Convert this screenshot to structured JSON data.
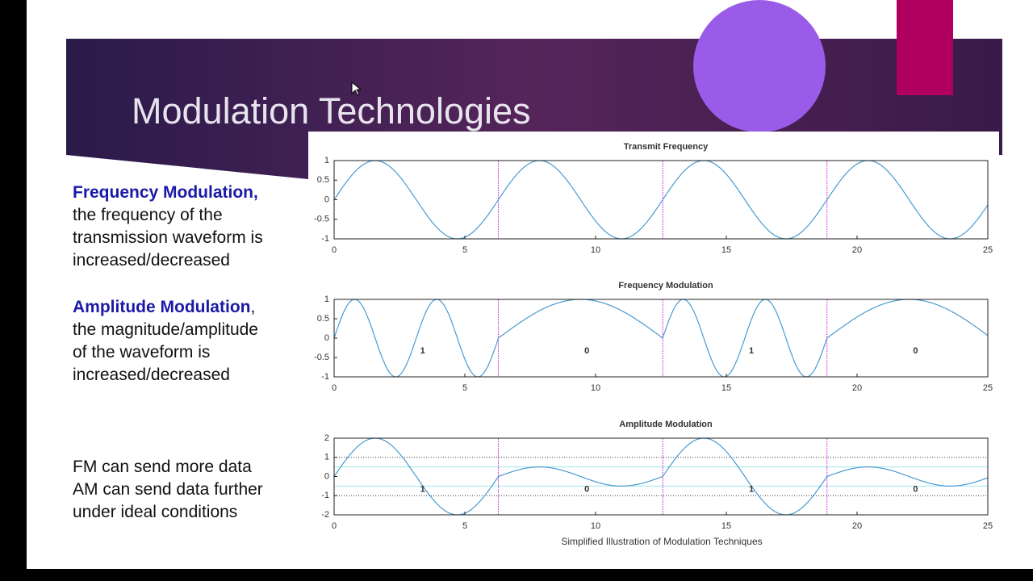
{
  "title": "Modulation Technologies",
  "paragraphs": [
    {
      "lead": "Frequency Modulation,",
      "lines": [
        "the frequency of the",
        "transmission waveform is",
        "increased/decreased"
      ]
    },
    {
      "lead": "Amplitude Modulation",
      "lead_tail": ",",
      "lines": [
        "the magnitude/amplitude",
        "of the waveform is",
        "increased/decreased"
      ]
    },
    {
      "lines": [
        "FM can send more data",
        "AM can send data further",
        "under ideal conditions"
      ]
    }
  ],
  "figure": {
    "caption": "Simplified Illustration of Modulation Techniques",
    "plots": [
      {
        "type": "carrier",
        "title": "Transmit Frequency",
        "xlim": [
          0,
          25
        ],
        "ylim": [
          -1,
          1
        ],
        "xticks": [
          0,
          5,
          10,
          15,
          20,
          25
        ],
        "yticks": [
          1,
          0.5,
          0,
          -0.5,
          -1
        ],
        "dividers": [
          6.28,
          12.57,
          18.85
        ]
      },
      {
        "type": "fm",
        "title": "Frequency Modulation",
        "xlim": [
          0,
          25
        ],
        "ylim": [
          -1,
          1
        ],
        "xticks": [
          0,
          5,
          10,
          15,
          20,
          25
        ],
        "yticks": [
          1,
          0.5,
          0,
          -0.5,
          -1
        ],
        "dividers": [
          6.28,
          12.57,
          18.85
        ],
        "bits": [
          "1",
          "0",
          "1",
          "0"
        ]
      },
      {
        "type": "am",
        "title": "Amplitude Modulation",
        "xlim": [
          0,
          25
        ],
        "ylim": [
          -2,
          2
        ],
        "xticks": [
          0,
          5,
          10,
          15,
          20,
          25
        ],
        "yticks": [
          2,
          1,
          0,
          -1,
          -2
        ],
        "dividers": [
          6.28,
          12.57,
          18.85
        ],
        "ref_lines": [
          -1,
          1
        ],
        "ref_bands": [
          -0.5,
          0.5
        ],
        "bits": [
          "1",
          "0",
          "1",
          "0"
        ]
      }
    ]
  }
}
